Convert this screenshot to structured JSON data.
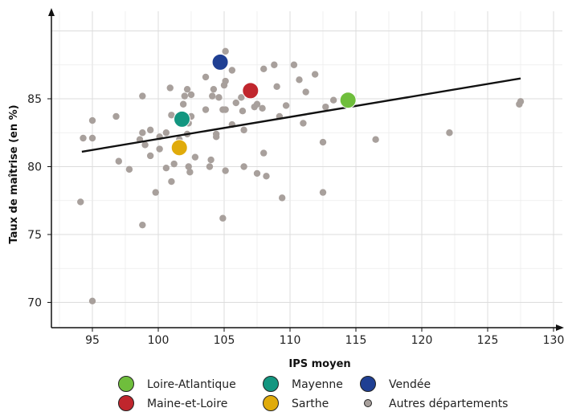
{
  "chart_data": {
    "type": "scatter",
    "title": "",
    "xlabel": "IPS moyen",
    "ylabel": "Taux de maîtrise (en %)",
    "xlim": [
      91.5,
      131.5
    ],
    "ylim": [
      68,
      92
    ],
    "xticks": [
      95,
      100,
      105,
      110,
      115,
      120,
      125,
      130
    ],
    "yticks": [
      70,
      75,
      80,
      85
    ],
    "grid": true,
    "legend_position": "bottom",
    "trend_line": {
      "x": [
        94.2,
        127.5
      ],
      "y": [
        81.1,
        86.5
      ]
    },
    "highlighted": [
      {
        "name": "Loire-Atlantique",
        "color": "#6fbe3c",
        "x": 114.4,
        "y": 84.9
      },
      {
        "name": "Maine-et-Loire",
        "color": "#c0262d",
        "x": 107.0,
        "y": 85.6
      },
      {
        "name": "Mayenne",
        "color": "#139680",
        "x": 101.8,
        "y": 83.5
      },
      {
        "name": "Sarthe",
        "color": "#e0ab0b",
        "x": 101.6,
        "y": 81.4
      },
      {
        "name": "Vendée",
        "color": "#1f3f93",
        "x": 104.7,
        "y": 87.7
      }
    ],
    "others": {
      "name": "Autres départements",
      "color": "#a8a09c",
      "points": [
        [
          94.1,
          77.4
        ],
        [
          94.3,
          82.1
        ],
        [
          95.0,
          82.1
        ],
        [
          95.0,
          83.4
        ],
        [
          95.0,
          70.1
        ],
        [
          96.8,
          83.7
        ],
        [
          97.0,
          80.4
        ],
        [
          97.8,
          79.8
        ],
        [
          98.6,
          82.0
        ],
        [
          98.8,
          82.5
        ],
        [
          98.8,
          85.2
        ],
        [
          98.8,
          75.7
        ],
        [
          99.0,
          81.6
        ],
        [
          99.4,
          82.7
        ],
        [
          99.4,
          80.8
        ],
        [
          99.8,
          78.1
        ],
        [
          100.1,
          82.2
        ],
        [
          100.1,
          81.3
        ],
        [
          100.6,
          82.5
        ],
        [
          100.6,
          79.9
        ],
        [
          100.9,
          85.8
        ],
        [
          101.0,
          83.8
        ],
        [
          101.0,
          78.9
        ],
        [
          101.2,
          80.2
        ],
        [
          101.6,
          82.0
        ],
        [
          101.9,
          84.6
        ],
        [
          102.2,
          82.4
        ],
        [
          102.3,
          80.0
        ],
        [
          102.0,
          85.2
        ],
        [
          102.2,
          85.7
        ],
        [
          102.3,
          83.2
        ],
        [
          102.4,
          79.6
        ],
        [
          102.5,
          85.3
        ],
        [
          102.5,
          83.7
        ],
        [
          102.8,
          80.7
        ],
        [
          103.6,
          86.6
        ],
        [
          103.6,
          84.2
        ],
        [
          103.9,
          80.0
        ],
        [
          104.0,
          80.5
        ],
        [
          104.1,
          85.2
        ],
        [
          104.2,
          85.7
        ],
        [
          104.4,
          82.4
        ],
        [
          104.4,
          82.2
        ],
        [
          104.6,
          85.1
        ],
        [
          104.9,
          84.2
        ],
        [
          104.9,
          76.2
        ],
        [
          105.0,
          86.0
        ],
        [
          105.1,
          86.3
        ],
        [
          105.1,
          84.2
        ],
        [
          105.1,
          79.7
        ],
        [
          105.1,
          88.5
        ],
        [
          105.6,
          87.1
        ],
        [
          105.6,
          83.1
        ],
        [
          105.9,
          84.7
        ],
        [
          106.3,
          85.1
        ],
        [
          106.4,
          84.1
        ],
        [
          106.5,
          82.7
        ],
        [
          106.5,
          80.0
        ],
        [
          107.3,
          84.4
        ],
        [
          107.5,
          84.6
        ],
        [
          107.5,
          79.5
        ],
        [
          107.9,
          84.3
        ],
        [
          108.0,
          81.0
        ],
        [
          108.0,
          87.2
        ],
        [
          108.2,
          79.3
        ],
        [
          108.8,
          87.5
        ],
        [
          109.0,
          85.9
        ],
        [
          109.2,
          83.7
        ],
        [
          109.4,
          77.7
        ],
        [
          109.7,
          84.5
        ],
        [
          110.3,
          87.5
        ],
        [
          110.7,
          86.4
        ],
        [
          111.0,
          83.2
        ],
        [
          111.2,
          85.5
        ],
        [
          111.9,
          86.8
        ],
        [
          112.5,
          81.8
        ],
        [
          112.5,
          78.1
        ],
        [
          112.7,
          84.4
        ],
        [
          113.3,
          84.9
        ],
        [
          116.5,
          82.0
        ],
        [
          122.1,
          82.5
        ],
        [
          127.4,
          84.6
        ],
        [
          127.5,
          84.8
        ]
      ]
    }
  }
}
